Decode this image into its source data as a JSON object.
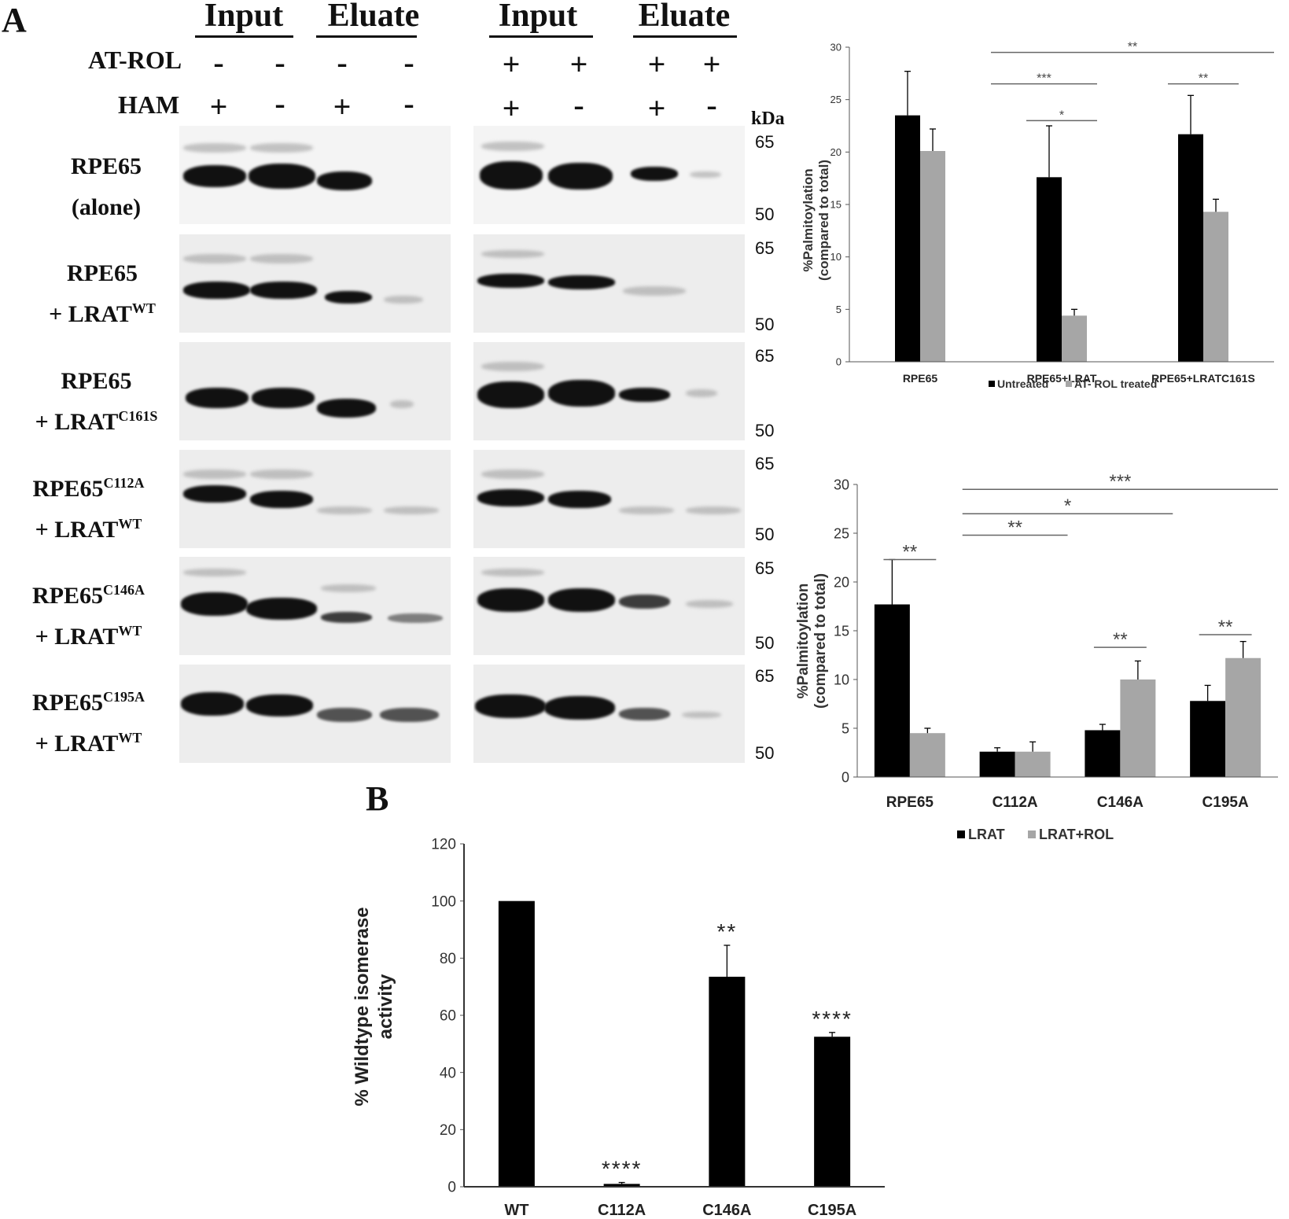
{
  "panel_a": {
    "letter": "A",
    "column_headers": [
      "Input",
      "Eluate",
      "Input",
      "Eluate"
    ],
    "treatment_labels": {
      "at_rol": "AT-ROL",
      "ham": "HAM"
    },
    "at_rol_signs": [
      "-",
      "-",
      "-",
      "-",
      "+",
      "+",
      "+",
      "+"
    ],
    "ham_signs": [
      "+",
      "-",
      "+",
      "-",
      "+",
      "-",
      "+",
      "-"
    ],
    "kda_label": "kDa",
    "markers": [
      "65",
      "50"
    ],
    "rows": [
      {
        "l1": "RPE65",
        "l1_sup": "",
        "l2": "(alone)",
        "l2_sup": ""
      },
      {
        "l1": "RPE65",
        "l1_sup": "",
        "l2": "+ LRAT",
        "l2_sup": "WT"
      },
      {
        "l1": "RPE65",
        "l1_sup": "",
        "l2": "+ LRAT",
        "l2_sup": "C161S"
      },
      {
        "l1": "RPE65",
        "l1_sup": "C112A",
        "l2": "+ LRAT",
        "l2_sup": "WT"
      },
      {
        "l1": "RPE65",
        "l1_sup": "C146A",
        "l2": "+ LRAT",
        "l2_sup": "WT"
      },
      {
        "l1": "RPE65",
        "l1_sup": "C195A",
        "l2": "+ LRAT",
        "l2_sup": "WT"
      }
    ]
  },
  "panel_b": {
    "letter": "B"
  },
  "chart_data": [
    {
      "type": "bar",
      "categories": [
        "RPE65",
        "RPE65+LRAT",
        "RPE65+LRATC161S"
      ],
      "series": [
        {
          "name": "Untreated",
          "values": [
            23.5,
            17.6,
            21.7
          ],
          "errors": [
            4.2,
            4.9,
            3.7
          ],
          "color": "#000000"
        },
        {
          "name": "AT- ROL treated",
          "values": [
            20.1,
            4.4,
            14.3
          ],
          "errors": [
            2.1,
            0.6,
            1.2
          ],
          "color": "#a6a6a6"
        }
      ],
      "ylabel": "%Palmitoylation (compared to total)",
      "ylim": [
        0,
        30
      ],
      "yticks": [
        "0",
        "5",
        "10",
        "15",
        "20",
        "25",
        "30"
      ],
      "significance": [
        {
          "from": 0.5,
          "to": 2.5,
          "y": 29.5,
          "label": "**"
        },
        {
          "from": 0.5,
          "to": 1.25,
          "y": 26.5,
          "label": "***"
        },
        {
          "from": 0.75,
          "to": 1.25,
          "y": 23.0,
          "label": "*"
        },
        {
          "from": 1.75,
          "to": 2.25,
          "y": 26.5,
          "label": "**"
        }
      ],
      "legend_position": "bottom"
    },
    {
      "type": "bar",
      "categories": [
        "RPE65",
        "C112A",
        "C146A",
        "C195A"
      ],
      "series": [
        {
          "name": "LRAT",
          "values": [
            17.7,
            2.6,
            4.8,
            7.8
          ],
          "errors": [
            4.6,
            0.4,
            0.6,
            1.6
          ],
          "color": "#000000"
        },
        {
          "name": "LRAT+ROL",
          "values": [
            4.5,
            2.6,
            10.0,
            12.2
          ],
          "errors": [
            0.5,
            1.0,
            1.9,
            1.7
          ],
          "color": "#a6a6a6"
        }
      ],
      "ylabel": "%Palmitoylation (compared to total)",
      "ylim": [
        0,
        30
      ],
      "yticks": [
        "0",
        "5",
        "10",
        "15",
        "20",
        "25",
        "30"
      ],
      "significance": [
        {
          "from": 0.5,
          "to": 3.5,
          "y": 29.5,
          "label": "***"
        },
        {
          "from": 0.5,
          "to": 2.5,
          "y": 27.0,
          "label": "*"
        },
        {
          "from": 0.5,
          "to": 1.5,
          "y": 24.8,
          "label": "**"
        },
        {
          "from": -0.25,
          "to": 0.25,
          "y": 22.3,
          "label": "**"
        },
        {
          "from": 1.75,
          "to": 2.25,
          "y": 13.3,
          "label": "**"
        },
        {
          "from": 2.75,
          "to": 3.25,
          "y": 14.6,
          "label": "**"
        }
      ],
      "legend_position": "bottom"
    },
    {
      "type": "bar",
      "categories": [
        "WT",
        "C112A",
        "C146A",
        "C195A"
      ],
      "series": [
        {
          "name": "",
          "values": [
            100,
            1,
            73.5,
            52.5
          ],
          "errors": [
            0,
            0.5,
            11,
            1.5
          ],
          "color": "#000000"
        }
      ],
      "annotations": [
        "",
        "****",
        "**",
        "****"
      ],
      "ylabel": "% Wildtype isomerase activity",
      "ylim": [
        0,
        120
      ],
      "yticks": [
        "0",
        "20",
        "40",
        "60",
        "80",
        "100",
        "120"
      ]
    }
  ]
}
